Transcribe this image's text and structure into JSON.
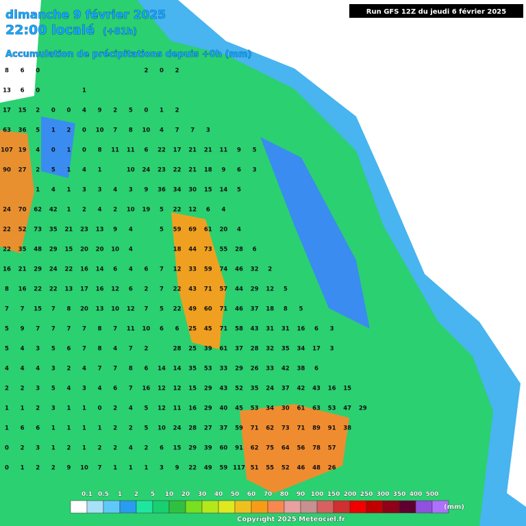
{
  "header": {
    "date": "dimanche 9 février 2025",
    "time": "22:00 localé",
    "lead": "(+81h)",
    "subtitle": "Accumulation de précipitations depuis +0h (mm)",
    "run": "Run GFS 12Z du jeudi 6 février 2025"
  },
  "map": {
    "rows": [
      [
        8,
        6,
        0,
        null,
        null,
        null,
        null,
        null,
        null,
        2,
        0,
        2
      ],
      [
        13,
        6,
        0,
        null,
        null,
        1
      ],
      [
        17,
        15,
        2,
        0,
        0,
        4,
        9,
        2,
        5,
        0,
        1,
        2
      ],
      [
        63,
        36,
        5,
        1,
        2,
        0,
        10,
        7,
        8,
        10,
        4,
        7,
        7,
        3
      ],
      [
        107,
        19,
        4,
        0,
        1,
        0,
        8,
        11,
        11,
        6,
        22,
        17,
        21,
        21,
        11,
        9,
        5
      ],
      [
        90,
        27,
        2,
        5,
        1,
        4,
        1,
        null,
        10,
        24,
        23,
        22,
        21,
        18,
        9,
        6,
        3
      ],
      [
        null,
        null,
        1,
        4,
        1,
        3,
        3,
        4,
        3,
        9,
        36,
        34,
        30,
        15,
        14,
        5
      ],
      [
        24,
        70,
        62,
        42,
        1,
        2,
        4,
        2,
        10,
        19,
        5,
        22,
        12,
        6,
        4
      ],
      [
        22,
        52,
        73,
        35,
        21,
        23,
        13,
        9,
        4,
        null,
        5,
        59,
        69,
        61,
        20,
        4
      ],
      [
        22,
        35,
        48,
        29,
        15,
        20,
        20,
        10,
        4,
        null,
        null,
        18,
        44,
        73,
        55,
        28,
        6
      ],
      [
        16,
        21,
        29,
        24,
        22,
        16,
        14,
        6,
        4,
        6,
        7,
        12,
        33,
        59,
        74,
        46,
        32,
        2
      ],
      [
        8,
        16,
        22,
        22,
        13,
        17,
        16,
        12,
        6,
        2,
        7,
        22,
        43,
        71,
        57,
        44,
        29,
        12,
        5
      ],
      [
        7,
        7,
        15,
        7,
        8,
        20,
        13,
        10,
        12,
        7,
        5,
        22,
        49,
        60,
        71,
        46,
        37,
        18,
        8,
        5
      ],
      [
        5,
        9,
        7,
        7,
        7,
        7,
        8,
        7,
        11,
        10,
        6,
        6,
        25,
        45,
        71,
        58,
        43,
        31,
        31,
        16,
        6,
        3
      ],
      [
        5,
        4,
        3,
        5,
        6,
        7,
        8,
        4,
        7,
        2,
        null,
        28,
        25,
        39,
        61,
        37,
        28,
        32,
        35,
        34,
        17,
        3
      ],
      [
        4,
        4,
        4,
        3,
        2,
        4,
        7,
        7,
        8,
        6,
        14,
        14,
        35,
        53,
        33,
        29,
        26,
        33,
        42,
        38,
        6
      ],
      [
        2,
        2,
        3,
        5,
        4,
        3,
        4,
        6,
        7,
        16,
        12,
        12,
        15,
        29,
        43,
        52,
        35,
        24,
        37,
        42,
        43,
        16,
        15
      ],
      [
        1,
        1,
        2,
        3,
        1,
        1,
        0,
        2,
        4,
        5,
        12,
        11,
        16,
        29,
        40,
        45,
        53,
        34,
        30,
        61,
        63,
        53,
        47,
        29
      ],
      [
        1,
        6,
        6,
        1,
        1,
        1,
        1,
        2,
        2,
        5,
        10,
        24,
        28,
        27,
        37,
        59,
        71,
        62,
        73,
        71,
        89,
        91,
        38
      ],
      [
        0,
        2,
        3,
        1,
        2,
        1,
        2,
        2,
        4,
        2,
        6,
        15,
        29,
        39,
        60,
        91,
        62,
        75,
        64,
        56,
        78,
        57
      ],
      [
        0,
        1,
        2,
        2,
        9,
        10,
        7,
        1,
        1,
        1,
        3,
        9,
        22,
        49,
        59,
        117,
        51,
        55,
        52,
        46,
        48,
        26
      ]
    ]
  },
  "legend": {
    "labels": [
      "0.1",
      "0.5",
      "1",
      "2",
      "5",
      "10",
      "20",
      "30",
      "40",
      "50",
      "60",
      "70",
      "80",
      "90",
      "100",
      "150",
      "200",
      "250",
      "300",
      "350",
      "400",
      "500"
    ],
    "colors": [
      "#ffffff",
      "#a8e0f8",
      "#60c8f8",
      "#2a9cf0",
      "#1ee6a0",
      "#18d070",
      "#30c040",
      "#78e020",
      "#b4e81c",
      "#e0e820",
      "#f0c020",
      "#f89c18",
      "#f88850",
      "#e8a0a0",
      "#c89090",
      "#d86060",
      "#d03030",
      "#f00000",
      "#c00000",
      "#900018",
      "#600030",
      "#9050e0",
      "#b070ff"
    ],
    "unit": "(mm)"
  },
  "footer": {
    "copyright": "Copyright 2025 Meteociel.fr"
  }
}
